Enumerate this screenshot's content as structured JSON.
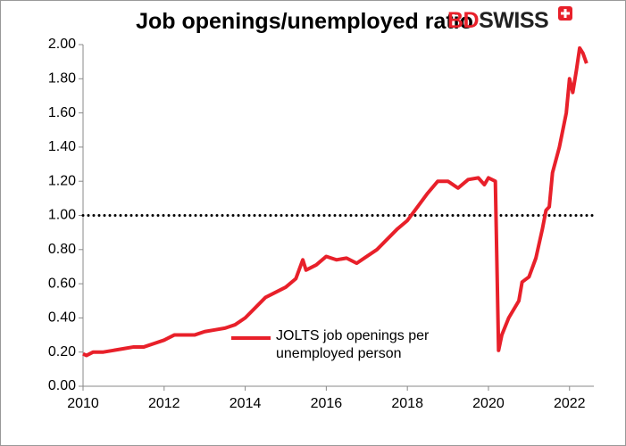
{
  "chart_data": {
    "type": "line",
    "title": "Job openings/unemployed ratio",
    "logo": {
      "bd": "BD",
      "swiss": "SWISS"
    },
    "x": [
      2010.0,
      2010.08,
      2010.25,
      2010.5,
      2010.75,
      2011.0,
      2011.25,
      2011.5,
      2011.75,
      2012.0,
      2012.25,
      2012.5,
      2012.75,
      2013.0,
      2013.25,
      2013.5,
      2013.75,
      2014.0,
      2014.25,
      2014.5,
      2014.75,
      2015.0,
      2015.25,
      2015.42,
      2015.5,
      2015.75,
      2016.0,
      2016.25,
      2016.5,
      2016.75,
      2017.0,
      2017.25,
      2017.5,
      2017.75,
      2018.0,
      2018.25,
      2018.5,
      2018.75,
      2019.0,
      2019.25,
      2019.5,
      2019.75,
      2019.9,
      2020.0,
      2020.17,
      2020.25,
      2020.33,
      2020.5,
      2020.75,
      2020.83,
      2021.0,
      2021.17,
      2021.33,
      2021.42,
      2021.5,
      2021.58,
      2021.75,
      2021.92,
      2022.0,
      2022.08,
      2022.17,
      2022.25,
      2022.33,
      2022.42
    ],
    "series": [
      {
        "name": "JOLTS job openings per unemployed person",
        "color": "#e8202a",
        "values": [
          0.19,
          0.18,
          0.2,
          0.2,
          0.21,
          0.22,
          0.23,
          0.23,
          0.25,
          0.27,
          0.3,
          0.3,
          0.3,
          0.32,
          0.33,
          0.34,
          0.36,
          0.4,
          0.46,
          0.52,
          0.55,
          0.58,
          0.63,
          0.74,
          0.68,
          0.71,
          0.76,
          0.74,
          0.75,
          0.72,
          0.76,
          0.8,
          0.86,
          0.92,
          0.97,
          1.05,
          1.13,
          1.2,
          1.2,
          1.16,
          1.21,
          1.22,
          1.18,
          1.22,
          1.2,
          0.21,
          0.3,
          0.4,
          0.5,
          0.61,
          0.64,
          0.75,
          0.92,
          1.03,
          1.05,
          1.25,
          1.4,
          1.6,
          1.8,
          1.72,
          1.85,
          1.98,
          1.95,
          1.89
        ]
      }
    ],
    "reference_line": 1,
    "xlim": [
      2010,
      2022.6
    ],
    "xticks": [
      2010,
      2012,
      2014,
      2016,
      2018,
      2020,
      2022
    ],
    "ylim": [
      0,
      2
    ],
    "yticks": [
      {
        "value": 0,
        "label": "0.00"
      },
      {
        "value": 0.2,
        "label": "0.20"
      },
      {
        "value": 0.4,
        "label": "0.40"
      },
      {
        "value": 0.6,
        "label": "0.60"
      },
      {
        "value": 0.8,
        "label": "0.80"
      },
      {
        "value": 1,
        "label": "1.00"
      },
      {
        "value": 1.2,
        "label": "1.20"
      },
      {
        "value": 1.4,
        "label": "1.40"
      },
      {
        "value": 1.6,
        "label": "1.60"
      },
      {
        "value": 1.8,
        "label": "1.80"
      },
      {
        "value": 2,
        "label": "2.00"
      }
    ],
    "grid": false
  }
}
